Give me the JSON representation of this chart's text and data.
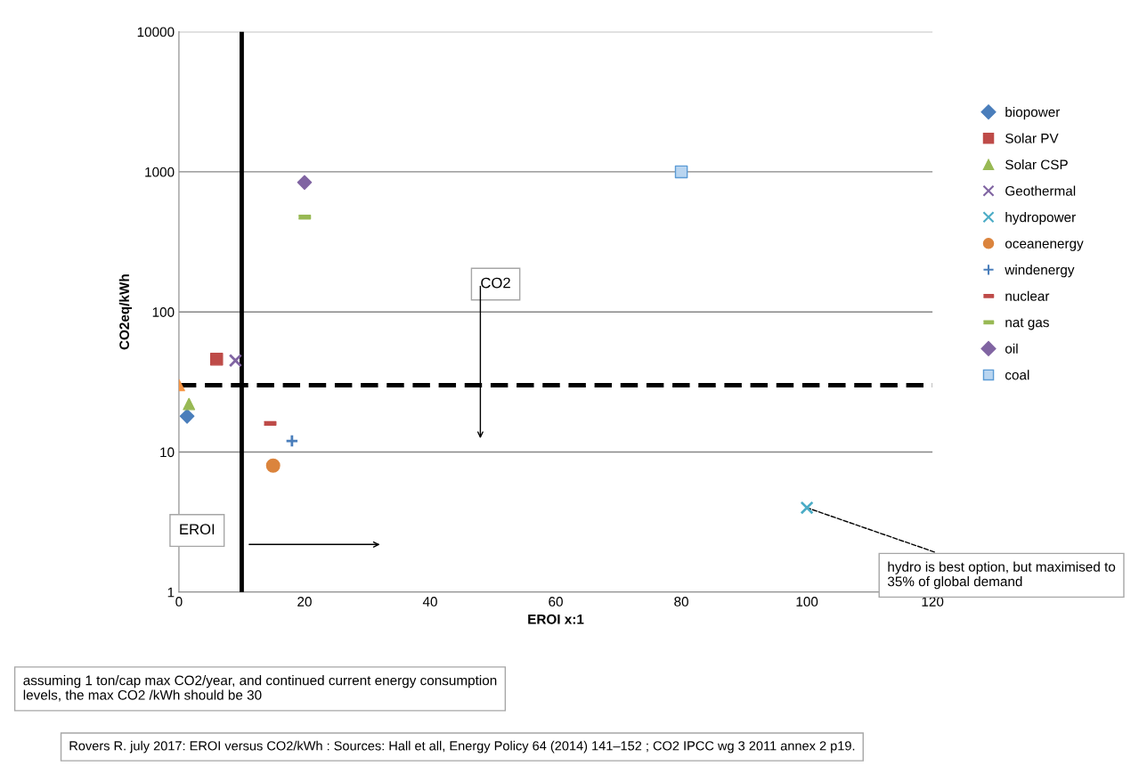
{
  "chart_data": {
    "type": "scatter",
    "xlabel": "EROI x:1",
    "ylabel": "CO2eq/kWh",
    "xlim": [
      0,
      120
    ],
    "xticks": [
      0,
      20,
      40,
      60,
      80,
      100,
      120
    ],
    "ylim": [
      1,
      10000
    ],
    "yticks": [
      1,
      10,
      100,
      1000,
      10000
    ],
    "log": "y",
    "grid": "y",
    "legend": "right",
    "series": [
      {
        "name": "biopower",
        "color": "#4a7ebb",
        "marker": "diamond",
        "x": [
          1.3
        ],
        "values": [
          18
        ]
      },
      {
        "name": "Solar PV",
        "color": "#be4b48",
        "marker": "square",
        "x": [
          6
        ],
        "values": [
          46
        ]
      },
      {
        "name": "Solar CSP",
        "color": "#98b954",
        "marker": "triangle",
        "x": [
          1.6
        ],
        "values": [
          22
        ]
      },
      {
        "name": "Geothermal",
        "color": "#8064a2",
        "marker": "cross",
        "x": [
          9
        ],
        "values": [
          45
        ]
      },
      {
        "name": "hydropower",
        "color": "#4bacc6",
        "marker": "cross",
        "x": [
          100
        ],
        "values": [
          4
        ]
      },
      {
        "name": "oceanenergy",
        "color": "#db843d",
        "marker": "circle",
        "x": [
          15
        ],
        "values": [
          8
        ]
      },
      {
        "name": "windenergy",
        "color": "#4a7ebb",
        "marker": "plus",
        "x": [
          18
        ],
        "values": [
          12
        ]
      },
      {
        "name": "nuclear",
        "color": "#be4b48",
        "x": [
          14.5
        ],
        "values": [
          16
        ]
      },
      {
        "name": "nat gas",
        "color": "#98b954",
        "x": [
          20
        ],
        "values": [
          475
        ]
      },
      {
        "name": "oil",
        "color": "#8064a2",
        "marker": "diamond",
        "x": [
          20
        ],
        "values": [
          840
        ]
      },
      {
        "name": "coal",
        "color": "#b9d5f0",
        "marker": "square",
        "x": [
          80
        ],
        "values": [
          1000
        ]
      },
      {
        "color": "#f79646",
        "marker": "triangle",
        "x": [
          0
        ],
        "values": [
          30
        ]
      }
    ],
    "ref_lines": [
      {
        "axis": "y",
        "value": 30,
        "color": "#000000",
        "line_style": "dashed"
      },
      {
        "axis": "x",
        "value": 10,
        "color": "#000000",
        "line_style": "solid"
      }
    ],
    "annotations": [
      "CO2",
      "EROI",
      {
        "text": "hydro is best option, but maximised to 35% of global demand",
        "x": 100,
        "y": 4
      },
      "assuming 1 ton/cap max CO2/year, and continued current energy consumption levels, the max CO2 /kWh should be 30",
      "Rovers R. july 2017: EROI versus CO2/kWh : Sources: Hall et all, Energy Policy 64 (2014) 141–152 ; CO2 IPCC wg 3 2011 annex 2 p19."
    ]
  }
}
